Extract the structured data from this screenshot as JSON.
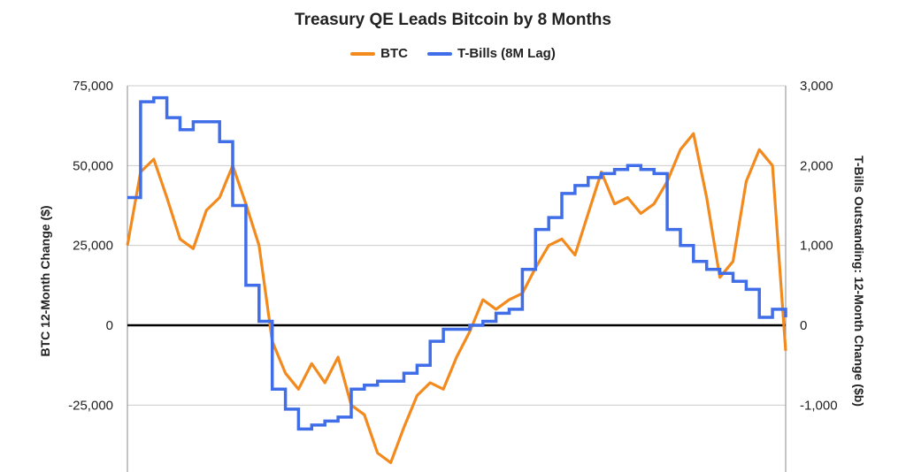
{
  "chart_data": {
    "type": "line",
    "title": "Treasury QE Leads Bitcoin by 8 Months",
    "ylabel_left": "BTC 12-Month Change ($)",
    "ylabel_right": "T-Bills Outstanding: 12-Month Change ($b)",
    "ylim_left": [
      -45000,
      75000
    ],
    "ylim_right": [
      -1800,
      3000
    ],
    "yticks_left": [
      "75,000",
      "50,000",
      "25,000",
      "0",
      "-25,000"
    ],
    "yticks_left_values": [
      75000,
      50000,
      25000,
      0,
      -25000
    ],
    "yticks_right": [
      "3,000",
      "2,000",
      "1,000",
      "0",
      "-1,000"
    ],
    "yticks_right_values": [
      3000,
      2000,
      1000,
      0,
      -1000
    ],
    "grid": true,
    "legend": "top-center",
    "colors": {
      "btc": "#f28a1e",
      "tbills": "#3f6ee8",
      "zero": "#000000",
      "grid": "#cccccc"
    },
    "x": [
      0,
      2,
      4,
      6,
      8,
      10,
      12,
      14,
      16,
      18,
      20,
      22,
      24,
      26,
      28,
      30,
      32,
      34,
      36,
      38,
      40,
      42,
      44,
      46,
      48,
      50,
      52,
      54,
      56,
      58,
      60,
      62,
      64,
      66,
      68,
      70,
      72,
      74,
      76,
      78,
      80,
      82,
      84,
      86,
      88,
      90,
      92,
      94,
      96,
      98,
      100
    ],
    "series": [
      {
        "name": "BTC",
        "axis": "left",
        "values": [
          25000,
          48000,
          52000,
          40000,
          27000,
          24000,
          36000,
          40000,
          50000,
          38000,
          25000,
          -5000,
          -15000,
          -20000,
          -12000,
          -18000,
          -10000,
          -25000,
          -28000,
          -40000,
          -43000,
          -32000,
          -22000,
          -18000,
          -20000,
          -10000,
          -2000,
          8000,
          5000,
          8000,
          10000,
          18000,
          25000,
          27000,
          22000,
          35000,
          48000,
          38000,
          40000,
          35000,
          38000,
          45000,
          55000,
          60000,
          40000,
          15000,
          20000,
          45000,
          55000,
          50000,
          -8000
        ],
        "unit": "$"
      },
      {
        "name": "T-Bills (8M Lag)",
        "axis": "right",
        "values": [
          1600,
          2800,
          2850,
          2600,
          2450,
          2550,
          2550,
          2300,
          1500,
          500,
          50,
          -800,
          -1050,
          -1300,
          -1250,
          -1200,
          -1150,
          -800,
          -750,
          -700,
          -700,
          -600,
          -500,
          -200,
          -50,
          -50,
          0,
          50,
          150,
          200,
          700,
          1200,
          1350,
          1650,
          1750,
          1850,
          1900,
          1950,
          2000,
          1950,
          1900,
          1200,
          1000,
          800,
          700,
          650,
          550,
          450,
          100,
          200,
          100
        ],
        "unit": "$b"
      }
    ]
  }
}
